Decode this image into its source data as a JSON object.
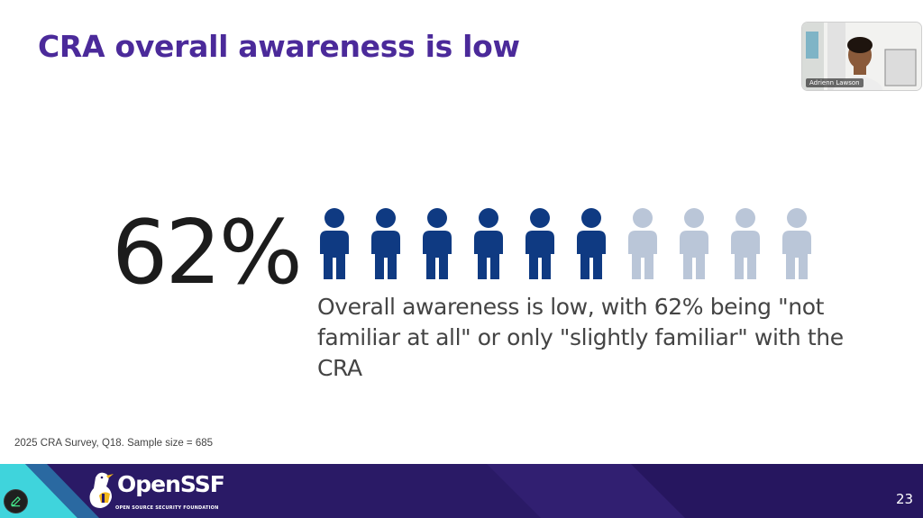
{
  "slide": {
    "title": "CRA overall awareness is low",
    "big_stat": "62%",
    "description": "Overall awareness is low, with 62% being \"not familiar at all\" or only \"slightly familiar\" with the CRA",
    "source": "2025 CRA Survey, Q18. Sample size = 685",
    "page_number": "23"
  },
  "pictogram": {
    "total_icons": 10,
    "filled_icons": 6,
    "filled_color": "#0f3a82",
    "empty_color": "#bac6d8"
  },
  "video_tile": {
    "participant_name": "Adrienn Lawson"
  },
  "footer": {
    "logo_text": "OpenSSF",
    "logo_subtext": "OPEN SOURCE SECURITY FOUNDATION",
    "background_color": "#2a1a66",
    "accent_color": "#3fd4dc"
  },
  "toolbar": {
    "edit_icon": "pencil-icon"
  }
}
